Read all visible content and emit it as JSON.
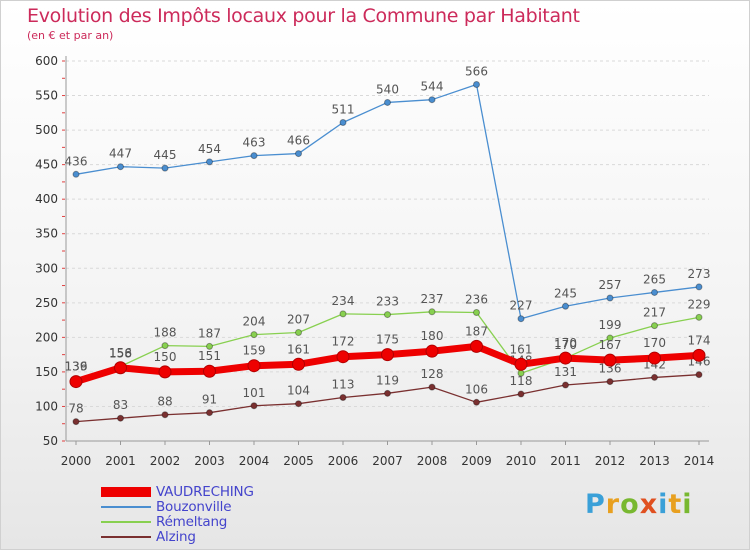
{
  "title": "Evolution des Impôts locaux pour la Commune par Habitant",
  "subtitle": "(en € et par an)",
  "logo": {
    "letters": [
      {
        "char": "P",
        "color": "#3aa0d8"
      },
      {
        "char": "r",
        "color": "#e8a020"
      },
      {
        "char": "o",
        "color": "#78b830"
      },
      {
        "char": "x",
        "color": "#e05020"
      },
      {
        "char": "i",
        "color": "#3aa0d8"
      },
      {
        "char": "t",
        "color": "#e8a020"
      },
      {
        "char": "i",
        "color": "#78b830"
      }
    ]
  },
  "chart_data": {
    "type": "line",
    "title": "Evolution des Impôts locaux pour la Commune par Habitant",
    "subtitle": "(en € et par an)",
    "x": [
      2000,
      2001,
      2002,
      2003,
      2004,
      2005,
      2006,
      2007,
      2008,
      2009,
      2010,
      2011,
      2012,
      2013,
      2014
    ],
    "yticks": [
      50,
      100,
      150,
      200,
      250,
      300,
      350,
      400,
      450,
      500,
      550,
      600
    ],
    "ylim": [
      50,
      600
    ],
    "grid": "horizontal",
    "legend_position": "bottom-left",
    "series": [
      {
        "name": "Bouzonville",
        "color": "#4a8ed0",
        "label_color": "#555555",
        "values": [
          436,
          447,
          445,
          454,
          463,
          466,
          511,
          540,
          544,
          566,
          227,
          245,
          257,
          265,
          273
        ]
      },
      {
        "name": "Rémeltang",
        "color": "#88d050",
        "label_color": "#555555",
        "values": [
          139,
          158,
          188,
          187,
          204,
          207,
          234,
          233,
          237,
          236,
          148,
          170,
          199,
          217,
          229
        ]
      },
      {
        "name": "Alzing",
        "color": "#7a3030",
        "label_color": "#555555",
        "values": [
          78,
          83,
          88,
          91,
          101,
          104,
          113,
          119,
          128,
          106,
          118,
          131,
          136,
          142,
          146
        ]
      },
      {
        "name": "VAUDRECHING",
        "color": "#ee0000",
        "label_color": "#555555",
        "thick": true,
        "values": [
          136,
          156,
          150,
          151,
          159,
          161,
          172,
          175,
          180,
          187,
          161,
          170,
          167,
          170,
          174
        ]
      }
    ]
  },
  "legend": [
    {
      "label": "VAUDRECHING",
      "color": "#ee0000",
      "thick": true
    },
    {
      "label": "Bouzonville",
      "color": "#4a8ed0"
    },
    {
      "label": "Rémeltang",
      "color": "#88d050"
    },
    {
      "label": "Alzing",
      "color": "#7a3030"
    }
  ]
}
